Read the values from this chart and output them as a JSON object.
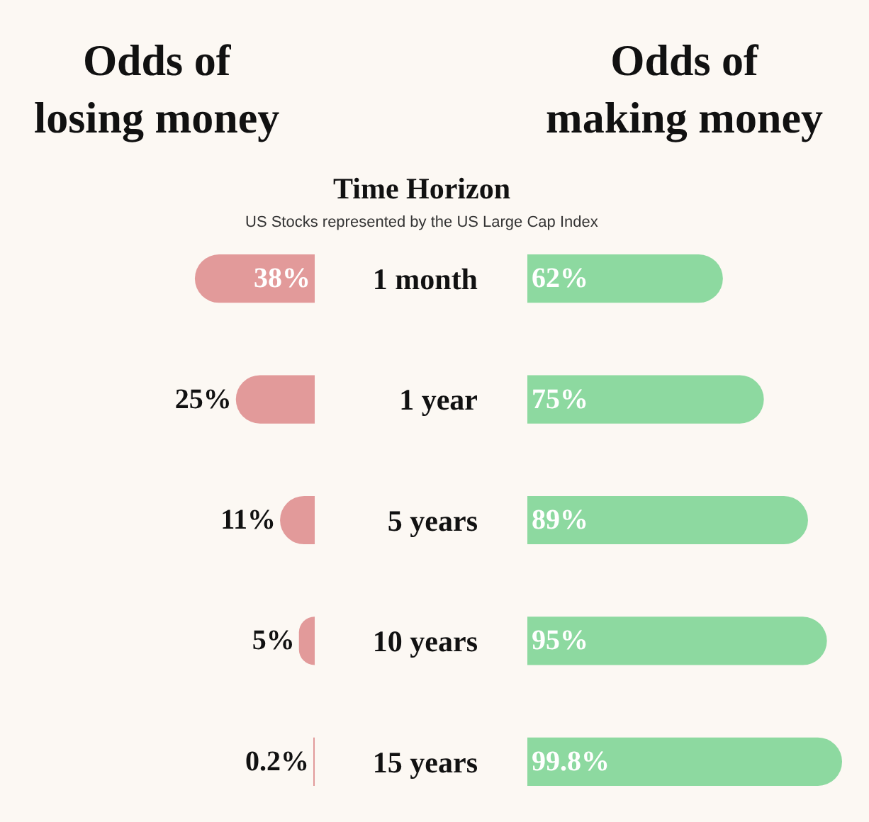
{
  "chart_data": [
    {
      "type": "bar",
      "orientation": "horizontal",
      "title": "Odds of losing money",
      "categories": [
        "1 month",
        "1 year",
        "5 years",
        "10 years",
        "15 years"
      ],
      "values": [
        38,
        25,
        11,
        5,
        0.2
      ],
      "value_labels": [
        "38%",
        "25%",
        "11%",
        "5%",
        "0.2%"
      ],
      "color": "#e29a9a",
      "tick_labels": false,
      "grid": false
    },
    {
      "type": "bar",
      "orientation": "horizontal",
      "title": "Odds of making money",
      "ylabel": "Time Horizon",
      "annotations": [
        "US Stocks represented by the US Large Cap Index"
      ],
      "categories": [
        "1 month",
        "1 year",
        "5 years",
        "10 years",
        "15 years"
      ],
      "values": [
        62,
        75,
        89,
        95,
        99.8
      ],
      "value_labels": [
        "62%",
        "75%",
        "89%",
        "95%",
        "99.8%"
      ],
      "color": "#8dd9a0",
      "tick_labels": "y",
      "grid": false
    }
  ]
}
